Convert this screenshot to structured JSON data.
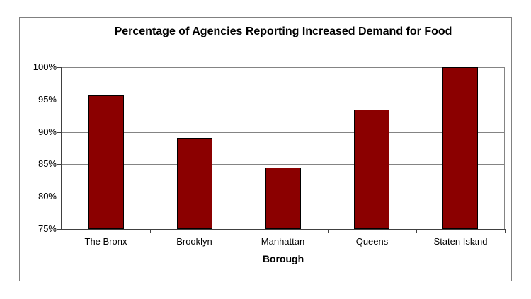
{
  "chart": {
    "title": "Percentage of Agencies Reporting Increased Demand for Food",
    "xlabel": "Borough"
  },
  "chart_data": {
    "type": "bar",
    "title": "Percentage of Agencies Reporting Increased Demand for Food",
    "xlabel": "Borough",
    "ylabel": "",
    "categories": [
      "The Bronx",
      "Brooklyn",
      "Manhattan",
      "Queens",
      "Staten Island"
    ],
    "values": [
      95.6,
      89.1,
      84.5,
      93.4,
      100
    ],
    "ylim": [
      75,
      100
    ],
    "ytick_step": 5,
    "yticks": [
      75,
      80,
      85,
      90,
      95,
      100
    ],
    "ytick_labels": [
      "75%",
      "80%",
      "85%",
      "90%",
      "95%",
      "100%"
    ],
    "grid": true,
    "legend": false,
    "colors": {
      "bar_fill": "#8B0000",
      "bar_border": "#000000",
      "gridline": "#848484",
      "axis": "#404040",
      "chart_border": "#808080",
      "text": "#000000",
      "background": "#ffffff"
    }
  }
}
